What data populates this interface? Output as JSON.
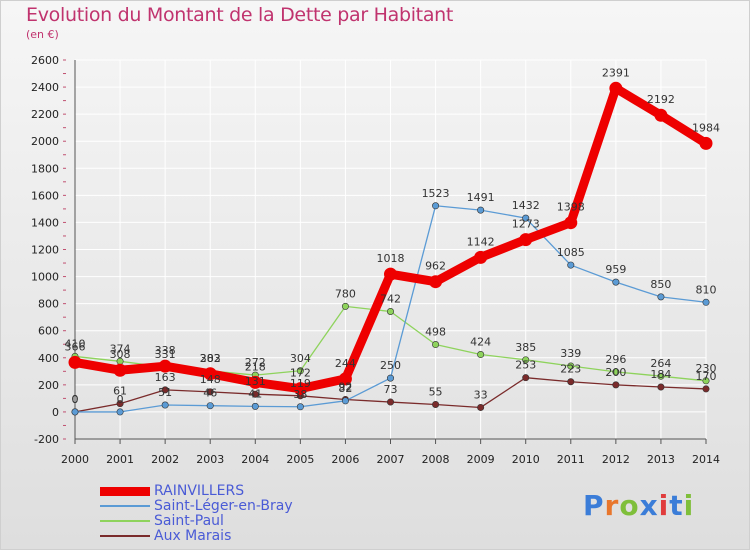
{
  "title": "Evolution du Montant de la Dette par Habitant",
  "unit": "(en €)",
  "logo": {
    "text": "Proxiti",
    "colors": [
      "#3b7dd8",
      "#e8762c",
      "#7fbf3a",
      "#3b7dd8",
      "#e03c3c",
      "#3b7dd8",
      "#7fbf3a"
    ]
  },
  "chart_data": {
    "type": "line",
    "x": [
      "2000",
      "2001",
      "2002",
      "2003",
      "2004",
      "2005",
      "2006",
      "2007",
      "2008",
      "2009",
      "2010",
      "2011",
      "2012",
      "2013",
      "2014"
    ],
    "ylim": [
      -200,
      2600
    ],
    "yticks": [
      "-200",
      "0",
      "200",
      "400",
      "600",
      "800",
      "1000",
      "1200",
      "1400",
      "1600",
      "1800",
      "2000",
      "2200",
      "2400",
      "2600"
    ],
    "grid": true,
    "legend_position": "bottom-left",
    "series": [
      {
        "name": "RAINVILLERS",
        "color": "#ee0000",
        "values": [
          366,
          308,
          338,
          282,
          218,
          172,
          244,
          1018,
          962,
          1142,
          1273,
          1398,
          2391,
          2192,
          1984
        ],
        "labels": [
          "366",
          "308",
          "338",
          "282",
          "218",
          "172",
          "244",
          "1018",
          "962",
          "1142",
          "1273",
          "1398",
          "2391",
          "2192",
          "1984"
        ]
      },
      {
        "name": "Saint-Léger-en-Bray",
        "color": "#5b9bd5",
        "values": [
          0,
          0,
          51,
          46,
          41,
          38,
          82,
          250,
          1523,
          1491,
          1432,
          1085,
          959,
          850,
          810
        ],
        "labels": [
          "0",
          "0",
          "51",
          "46",
          "41",
          "38",
          "82",
          "250",
          "1523",
          "1491",
          "1432",
          "1085",
          "959",
          "850",
          "810"
        ]
      },
      {
        "name": "Saint-Paul",
        "color": "#8ed35c",
        "values": [
          410,
          374,
          331,
          303,
          272,
          304,
          780,
          742,
          498,
          424,
          385,
          339,
          296,
          264,
          230
        ],
        "labels": [
          "410",
          "374",
          "331",
          "303",
          "272",
          "304",
          "780",
          "742",
          "498",
          "424",
          "385",
          "339",
          "296",
          "264",
          "230"
        ]
      },
      {
        "name": "Aux Marais",
        "color": "#7a2b2b",
        "values": [
          0,
          61,
          163,
          148,
          131,
          119,
          92,
          73,
          55,
          33,
          253,
          223,
          200,
          184,
          170
        ],
        "labels": [
          "0",
          "61",
          "163",
          "148",
          "131",
          "119",
          "92",
          "73",
          "55",
          "33",
          "253",
          "223",
          "200",
          "184",
          "170"
        ]
      }
    ]
  }
}
